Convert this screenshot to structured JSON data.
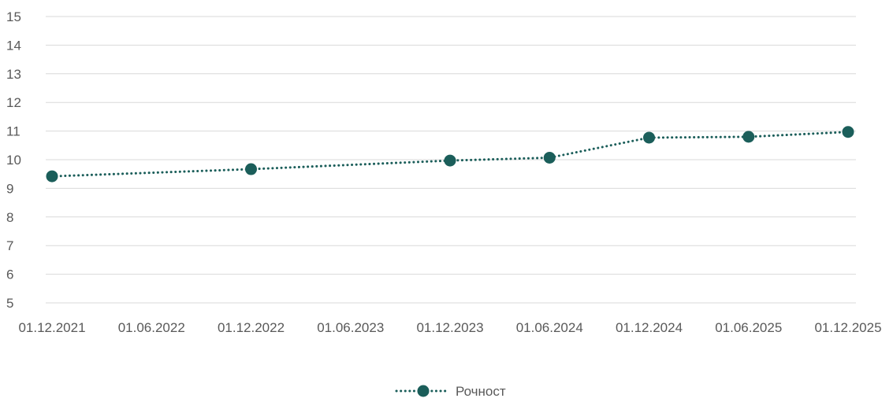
{
  "chart_data": {
    "type": "line",
    "title": "",
    "xlabel": "",
    "ylabel": "",
    "x_ticks": [
      "01.12.2021",
      "01.06.2022",
      "01.12.2022",
      "01.06.2023",
      "01.12.2023",
      "01.06.2024",
      "01.12.2024",
      "01.06.2025",
      "01.12.2025"
    ],
    "ylim": [
      5,
      15
    ],
    "y_ticks": [
      5,
      6,
      7,
      8,
      9,
      10,
      11,
      12,
      13,
      14,
      15
    ],
    "grid": true,
    "legend": "bottom-center",
    "series": [
      {
        "name": "Рочност",
        "color": "#1b5e5a",
        "line_style": "dotted",
        "marker": "circle",
        "points": [
          {
            "x": "01.12.2021",
            "y": 9.42
          },
          {
            "x": "01.12.2022",
            "y": 9.67
          },
          {
            "x": "01.12.2023",
            "y": 9.97
          },
          {
            "x": "01.06.2024",
            "y": 10.07
          },
          {
            "x": "01.12.2024",
            "y": 10.77
          },
          {
            "x": "01.06.2025",
            "y": 10.8
          },
          {
            "x": "01.12.2025",
            "y": 10.97
          }
        ]
      }
    ]
  }
}
